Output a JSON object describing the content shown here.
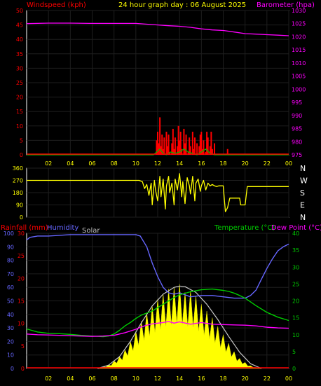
{
  "colors": {
    "windspeed": "#ff0000",
    "gust_green": "#00c000",
    "barometer": "#ff00ff",
    "direction": "#ffff00",
    "rainfall": "#ff0000",
    "humidity": "#6666ff",
    "solar": "#ffff00",
    "solar_label": "#c0c0c0",
    "temperature": "#00cc00",
    "dewpoint": "#ff00ff",
    "title": "#ffff00",
    "axis_tick": "#ffff00",
    "panel_border": "#ffffff",
    "grid": "#1e1e1e"
  },
  "header": {
    "title": "24 hour graph day : 06 August 2025"
  },
  "chart_data": [
    {
      "type": "line",
      "panel": "wind-barometer",
      "left_axis_label": "Windspeed (kph)",
      "right_axis_label": "Barometer (hpa)",
      "xlim": [
        0,
        24
      ],
      "x_ticks": [
        "02",
        "04",
        "06",
        "08",
        "10",
        "12",
        "14",
        "16",
        "18",
        "20",
        "22",
        "00"
      ],
      "left_ylim": [
        0,
        50
      ],
      "left_ticks": [
        "0",
        "5",
        "10",
        "15",
        "20",
        "25",
        "30",
        "35",
        "40",
        "45",
        "50"
      ],
      "right_ylim": [
        975,
        1030
      ],
      "right_ticks": [
        "975",
        "980",
        "985",
        "990",
        "995",
        "1000",
        "1005",
        "1010",
        "1015",
        "1020",
        "1025",
        "1030"
      ],
      "series": [
        {
          "key": "barometer",
          "axis": "right",
          "x": [
            0,
            2,
            4,
            6,
            8,
            10,
            11,
            12,
            13,
            14,
            15,
            16,
            17,
            18,
            19,
            20,
            21,
            22,
            23,
            24
          ],
          "y": [
            1025,
            1025.2,
            1025.2,
            1025.1,
            1025.1,
            1025.1,
            1024.8,
            1024.5,
            1024.2,
            1024.0,
            1023.6,
            1023.0,
            1022.6,
            1022.4,
            1021.8,
            1021.2,
            1021.0,
            1020.8,
            1020.6,
            1020.4
          ]
        },
        {
          "key": "windspeed",
          "axis": "left",
          "kind": "bars",
          "x": [
            11.9,
            12.0,
            12.1,
            12.2,
            12.3,
            12.4,
            12.5,
            12.6,
            12.8,
            12.9,
            13.0,
            13.1,
            13.3,
            13.4,
            13.5,
            13.6,
            13.8,
            13.9,
            14.0,
            14.1,
            14.2,
            14.4,
            14.5,
            14.6,
            14.8,
            14.9,
            15.0,
            15.2,
            15.3,
            15.4,
            15.6,
            15.8,
            15.9,
            16.0,
            16.1,
            16.2,
            16.4,
            16.5,
            16.6,
            16.8,
            16.9,
            17.0,
            17.2,
            18.4
          ],
          "y": [
            5,
            8,
            4,
            13,
            3,
            7,
            2,
            6,
            8,
            3,
            7,
            1,
            4,
            9,
            2,
            6,
            3,
            10,
            5,
            8,
            2,
            9,
            4,
            7,
            1,
            6,
            3,
            8,
            2,
            6,
            4,
            3,
            7,
            8,
            2,
            5,
            1,
            8,
            6,
            3,
            8,
            2,
            4,
            2
          ]
        },
        {
          "key": "gust_green",
          "axis": "left",
          "x": [
            0,
            11.6,
            11.9,
            12.2,
            12.5,
            12.8,
            13.2,
            13.6,
            14.0,
            14.4,
            14.8,
            15.2,
            15.6,
            16.0,
            16.4,
            16.8,
            17.2,
            17.6,
            24
          ],
          "y": [
            0,
            0,
            1,
            2,
            0.5,
            0,
            1,
            0.5,
            1,
            2,
            1,
            0.5,
            0,
            1,
            2,
            0.5,
            0,
            0,
            0
          ]
        }
      ]
    },
    {
      "type": "line",
      "panel": "wind-direction",
      "xlim": [
        0,
        24
      ],
      "left_ylim": [
        0,
        360
      ],
      "left_ticks": [
        "0",
        "90",
        "180",
        "270",
        "360"
      ],
      "right_ticks": [
        "N",
        "W",
        "S",
        "E",
        "N"
      ],
      "series": [
        {
          "key": "direction",
          "x": [
            0,
            10.3,
            10.6,
            10.8,
            11.0,
            11.2,
            11.4,
            11.5,
            11.7,
            11.8,
            12.0,
            12.2,
            12.3,
            12.5,
            12.7,
            12.8,
            13.0,
            13.1,
            13.3,
            13.5,
            13.6,
            13.8,
            14.0,
            14.2,
            14.3,
            14.5,
            14.7,
            14.9,
            15.0,
            15.2,
            15.4,
            15.5,
            15.7,
            15.9,
            16.0,
            16.2,
            16.4,
            16.6,
            16.8,
            17.0,
            17.2,
            17.4,
            17.6,
            17.8,
            18.0,
            18.2,
            18.4,
            18.6,
            18.8,
            19.0,
            19.2,
            19.5,
            19.6,
            20.0,
            20.2,
            24
          ],
          "y": [
            270,
            270,
            260,
            210,
            240,
            160,
            250,
            90,
            270,
            200,
            120,
            300,
            150,
            280,
            60,
            230,
            300,
            180,
            250,
            90,
            280,
            200,
            320,
            150,
            260,
            100,
            290,
            230,
            170,
            300,
            120,
            250,
            280,
            190,
            230,
            270,
            200,
            250,
            230,
            240,
            230,
            225,
            230,
            230,
            230,
            40,
            70,
            140,
            140,
            140,
            140,
            140,
            90,
            90,
            225,
            225
          ]
        }
      ]
    },
    {
      "type": "line",
      "panel": "temperature-rain",
      "rain_label": "Rainfall (mm)",
      "humidity_label": "Humidity",
      "solar_label": "Solar",
      "temperature_label": "Temperature (°C)",
      "dewpoint_label": "Dew Point (°C)",
      "xlim": [
        0,
        24
      ],
      "x_ticks": [
        "02",
        "04",
        "06",
        "08",
        "10",
        "12",
        "14",
        "16",
        "18",
        "20",
        "22",
        "00"
      ],
      "humidity_ticks": [
        "0",
        "10",
        "20",
        "30",
        "40",
        "50",
        "60",
        "70",
        "80",
        "90",
        "100"
      ],
      "rain_ylim": [
        0,
        30
      ],
      "rain_ticks": [
        "0",
        "5",
        "10",
        "15",
        "20",
        "25",
        "30"
      ],
      "temp_ylim": [
        0,
        40
      ],
      "temp_ticks": [
        "0",
        "5",
        "10",
        "15",
        "20",
        "25",
        "30",
        "35",
        "40"
      ],
      "series": [
        {
          "key": "humidity",
          "axis": "humidity",
          "x": [
            0,
            0.3,
            1.0,
            2.0,
            4.0,
            6.0,
            8.0,
            9.0,
            10.0,
            10.4,
            11.0,
            11.5,
            12.0,
            12.5,
            13.0,
            13.5,
            14.0,
            15.0,
            16.0,
            17.0,
            18.0,
            19.0,
            20.0,
            20.5,
            21.0,
            21.5,
            22.0,
            22.5,
            23.0,
            23.5,
            24.0
          ],
          "y": [
            95,
            97,
            98,
            98,
            99,
            99,
            99,
            99,
            99,
            98,
            90,
            78,
            68,
            60,
            56,
            55,
            56,
            53,
            54,
            54,
            53,
            52,
            52,
            54,
            58,
            66,
            74,
            81,
            87,
            90,
            92
          ]
        },
        {
          "key": "temperature",
          "axis": "temp",
          "x": [
            0,
            1,
            2,
            3,
            4,
            5,
            6,
            7,
            7.5,
            8,
            8.5,
            9,
            9.5,
            10,
            10.5,
            11,
            11.5,
            12,
            12.5,
            13,
            13.5,
            14,
            15,
            16,
            16.5,
            17,
            17.5,
            18,
            18.5,
            19,
            19.5,
            20,
            21,
            22,
            23,
            24
          ],
          "y": [
            11.7,
            10.8,
            10.4,
            10.3,
            10.1,
            9.8,
            9.6,
            9.4,
            9.6,
            10.2,
            11.3,
            12.6,
            13.6,
            14.8,
            15.8,
            16.4,
            17.0,
            18.0,
            19.0,
            20.0,
            21.0,
            21.8,
            22.7,
            23.3,
            23.4,
            23.5,
            23.3,
            23.1,
            22.8,
            22.3,
            21.6,
            20.8,
            18.6,
            16.6,
            15.2,
            14.2
          ]
        },
        {
          "key": "dewpoint",
          "axis": "temp",
          "x": [
            0,
            1,
            2,
            3,
            4,
            5,
            6,
            7,
            8,
            9,
            10,
            10.5,
            11,
            11.5,
            12,
            12.5,
            13,
            13.5,
            14,
            15,
            16,
            17,
            18,
            19,
            20,
            21,
            22,
            23,
            24
          ],
          "y": [
            10.2,
            10.0,
            9.9,
            9.8,
            9.7,
            9.6,
            9.5,
            9.6,
            9.8,
            10.6,
            11.6,
            12.3,
            12.8,
            13.2,
            13.4,
            13.6,
            13.9,
            13.4,
            13.8,
            13.1,
            13.6,
            13.1,
            13.0,
            12.9,
            12.8,
            12.6,
            12.2,
            12.0,
            11.9
          ]
        },
        {
          "key": "solar_curve",
          "axis": "temp",
          "x": [
            6.5,
            7.5,
            8.5,
            9.5,
            10.5,
            11.5,
            12.5,
            13.5,
            14.0,
            14.5,
            15.5,
            16.5,
            17.5,
            18.5,
            19.5,
            20.5,
            21.5
          ],
          "y": [
            0,
            1.0,
            3.5,
            8.0,
            13.5,
            18.5,
            22.0,
            24.0,
            24.4,
            24.2,
            22.5,
            19.0,
            14.5,
            9.5,
            4.8,
            1.4,
            0
          ]
        },
        {
          "key": "solar_fill",
          "axis": "temp",
          "kind": "area",
          "x": [
            6.5,
            7.0,
            7.5,
            8.0,
            8.5,
            9.0,
            9.5,
            10.0,
            10.5,
            11.0,
            11.5,
            12.0,
            12.5,
            13.0,
            13.5,
            14.0,
            14.5,
            15.0,
            15.5,
            16.0,
            16.5,
            17.0,
            17.5,
            18.0,
            18.5,
            19.0,
            19.5,
            20.0,
            20.5,
            21.0,
            21.5
          ],
          "y": [
            0,
            0.5,
            1.0,
            2.2,
            3.5,
            5.5,
            8.0,
            11.0,
            14.0,
            16.5,
            18.5,
            20.5,
            22.0,
            23.5,
            24.0,
            25.0,
            22.5,
            23.0,
            21.5,
            19.0,
            17.0,
            15.0,
            12.5,
            10.0,
            7.5,
            5.0,
            3.0,
            1.8,
            0.8,
            0.3,
            0
          ]
        }
      ]
    }
  ]
}
